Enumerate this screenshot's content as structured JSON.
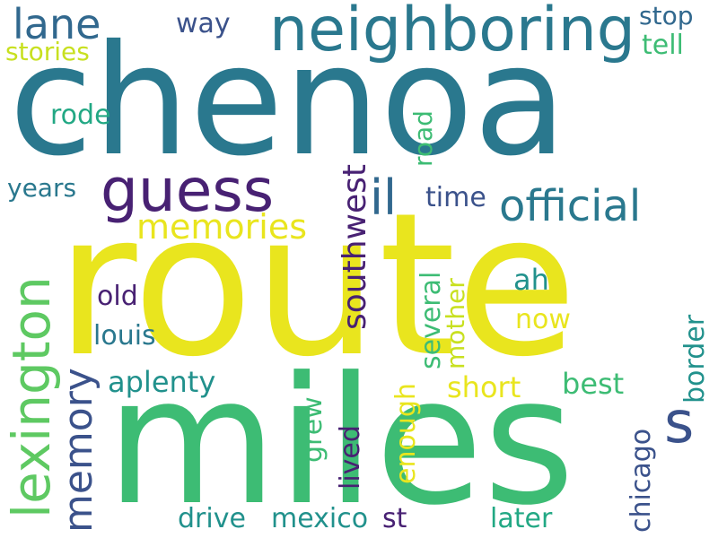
{
  "palette": {
    "teal_blue": "#2a788e",
    "teal": "#21918c",
    "green": "#3dbc74",
    "light_green": "#5ec962",
    "yellow": "#e9e51e",
    "yellow_green": "#c8e020",
    "purple": "#482173",
    "deep_purple": "#440154",
    "indigo": "#3b528b",
    "slate": "#31688e",
    "sea_green": "#22a884"
  },
  "words": {
    "chenoa": "chenoa",
    "route": "route",
    "miles": "miles",
    "neighboring": "neighboring",
    "guess": "guess",
    "lexington": "lexington",
    "official": "official",
    "il": "il",
    "memories": "memories",
    "memory": "memory",
    "lane": "lane",
    "s": "s",
    "southwest": "southwest",
    "way": "way",
    "stop": "stop",
    "tell": "tell",
    "stories": "stories",
    "rode": "rode",
    "road": "road",
    "years": "years",
    "time": "time",
    "old": "old",
    "louis": "louis",
    "ah": "ah",
    "now": "now",
    "several": "several",
    "mother": "mother",
    "aplenty": "aplenty",
    "short": "short",
    "best": "best",
    "border": "border",
    "grew": "grew",
    "lived": "lived",
    "enough": "enough",
    "chicago": "chicago",
    "drive": "drive",
    "mexico": "mexico",
    "st": "st",
    "later": "later"
  }
}
